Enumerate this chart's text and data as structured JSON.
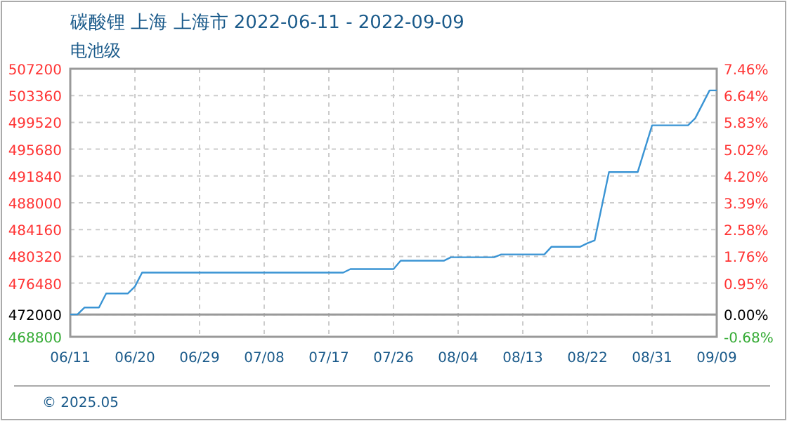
{
  "chart_data": {
    "type": "line",
    "title": "碳酸锂 上海 上海市 2022-06-11 - 2022-09-09",
    "subtitle": "电池级",
    "x": [
      "2022-06-11",
      "2022-06-12",
      "2022-06-13",
      "2022-06-15",
      "2022-06-16",
      "2022-06-19",
      "2022-06-20",
      "2022-06-21",
      "2022-07-19",
      "2022-07-20",
      "2022-07-26",
      "2022-07-27",
      "2022-08-02",
      "2022-08-03",
      "2022-08-09",
      "2022-08-10",
      "2022-08-16",
      "2022-08-17",
      "2022-08-21",
      "2022-08-22",
      "2022-08-23",
      "2022-08-25",
      "2022-08-29",
      "2022-08-31",
      "2022-09-05",
      "2022-09-06",
      "2022-09-08",
      "2022-09-09"
    ],
    "series": [
      {
        "color": "#3a94d4",
        "values": [
          472000,
          472000,
          473000,
          473000,
          475000,
          475000,
          476000,
          478000,
          478000,
          478500,
          478500,
          479700,
          479700,
          480200,
          480200,
          480600,
          480600,
          481700,
          481700,
          482200,
          482600,
          492400,
          492400,
          499100,
          499100,
          500100,
          504100,
          504100
        ]
      }
    ],
    "xlim": [
      "2022-06-11",
      "2022-09-09"
    ],
    "xticks": [
      {
        "value": "2022-06-11",
        "label": "06/11"
      },
      {
        "value": "2022-06-20",
        "label": "06/20"
      },
      {
        "value": "2022-06-29",
        "label": "06/29"
      },
      {
        "value": "2022-07-08",
        "label": "07/08"
      },
      {
        "value": "2022-07-17",
        "label": "07/17"
      },
      {
        "value": "2022-07-26",
        "label": "07/26"
      },
      {
        "value": "2022-08-04",
        "label": "08/04"
      },
      {
        "value": "2022-08-13",
        "label": "08/13"
      },
      {
        "value": "2022-08-22",
        "label": "08/22"
      },
      {
        "value": "2022-08-31",
        "label": "08/31"
      },
      {
        "value": "2022-09-09",
        "label": "09/09"
      }
    ],
    "ylim": [
      468800,
      507200
    ],
    "yticks": [
      468800,
      472000,
      476480,
      480320,
      484160,
      488000,
      491840,
      495680,
      499520,
      503360,
      507200
    ],
    "y2lim": [
      -0.68,
      7.46
    ],
    "y2ticks": [
      {
        "value": -0.68,
        "label": "-0.68%"
      },
      {
        "value": 0,
        "label": "0.00%"
      },
      {
        "value": 0.95,
        "label": "0.95%"
      },
      {
        "value": 1.76,
        "label": "1.76%"
      },
      {
        "value": 2.58,
        "label": "2.58%"
      },
      {
        "value": 3.39,
        "label": "3.39%"
      },
      {
        "value": 4.2,
        "label": "4.20%"
      },
      {
        "value": 5.02,
        "label": "5.02%"
      },
      {
        "value": 5.83,
        "label": "5.83%"
      },
      {
        "value": 6.64,
        "label": "6.64%"
      },
      {
        "value": 7.46,
        "label": "7.46%"
      }
    ],
    "ref_lines": [
      {
        "axis": "y",
        "value": 472000,
        "color": "#999999"
      }
    ],
    "grid": true,
    "line_style": "solid",
    "marker": "none",
    "annotations": [
      "© 2025.05"
    ]
  }
}
